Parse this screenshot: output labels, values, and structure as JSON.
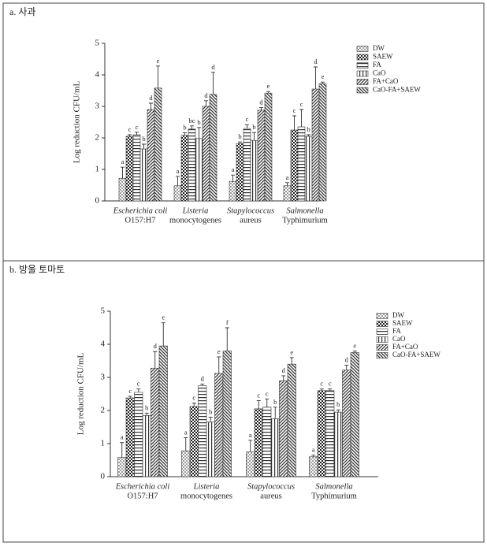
{
  "chart_data": [
    {
      "type": "bar",
      "title": "a. 사과",
      "y_label": "Log reduction CFU/mL",
      "categories": [
        [
          "Escherichia coli",
          "O157:H7"
        ],
        [
          "Listeria",
          "monocytogenes"
        ],
        [
          "Stapylococcus",
          "aureus"
        ],
        [
          "Salmonella",
          "Typhimurium"
        ]
      ],
      "ylim": [
        0,
        5
      ],
      "yticks": [
        0,
        1,
        2,
        3,
        4,
        5
      ],
      "series": [
        {
          "name": "DW",
          "color": "#555",
          "pattern": "dots",
          "values": [
            0.72,
            0.48,
            0.62,
            0.48
          ],
          "errors": [
            0.35,
            0.3,
            0.2,
            0.1
          ],
          "letters": [
            "a",
            "a",
            "a",
            "a"
          ]
        },
        {
          "name": "SAEW",
          "color": "#222",
          "pattern": "checker",
          "values": [
            2.05,
            2.08,
            1.82,
            2.25
          ],
          "errors": [
            0.05,
            0.08,
            0.05,
            0.45
          ],
          "letters": [
            "c",
            "b",
            "b",
            "c"
          ]
        },
        {
          "name": "FA",
          "color": "#333",
          "pattern": "hlines",
          "values": [
            2.1,
            2.28,
            2.3,
            2.35
          ],
          "errors": [
            0.08,
            0.1,
            0.12,
            0.55
          ],
          "letters": [
            "c",
            "bc",
            "c",
            "c"
          ]
        },
        {
          "name": "CaO",
          "color": "#333",
          "pattern": "vlines",
          "values": [
            1.65,
            1.98,
            1.92,
            2.05
          ],
          "errors": [
            0.15,
            0.35,
            0.25,
            0.05
          ],
          "letters": [
            "b",
            "b",
            "b",
            "b"
          ]
        },
        {
          "name": "FA+CaO",
          "color": "#333",
          "pattern": "diag",
          "values": [
            2.9,
            3.0,
            2.88,
            3.55
          ],
          "errors": [
            0.2,
            0.18,
            0.08,
            0.7
          ],
          "letters": [
            "d",
            "d",
            "d",
            "d"
          ]
        },
        {
          "name": "CaO-FA+SAEW",
          "color": "#333",
          "pattern": "diag2",
          "values": [
            3.58,
            3.38,
            3.42,
            3.72
          ],
          "errors": [
            0.7,
            0.7,
            0.05,
            0.05
          ],
          "letters": [
            "e",
            "d",
            "e",
            "e"
          ]
        }
      ]
    },
    {
      "type": "bar",
      "title": "b. 방울 토마토",
      "y_label": "Log reduction CFU/mL",
      "categories": [
        [
          "Escherichia coli",
          "O157:H7"
        ],
        [
          "Listeria",
          "monocytogenes"
        ],
        [
          "Stapylococcus",
          "aureus"
        ],
        [
          "Salmonella",
          "Typhimurium"
        ]
      ],
      "ylim": [
        0,
        5
      ],
      "yticks": [
        0,
        1,
        2,
        3,
        4,
        5
      ],
      "series": [
        {
          "name": "DW",
          "color": "#555",
          "pattern": "dots",
          "values": [
            0.58,
            0.78,
            0.75,
            0.6
          ],
          "errors": [
            0.45,
            0.4,
            0.35,
            0.05
          ],
          "letters": [
            "a",
            "a",
            "a",
            "a"
          ]
        },
        {
          "name": "SAEW",
          "color": "#222",
          "pattern": "checker",
          "values": [
            2.38,
            2.12,
            2.05,
            2.6
          ],
          "errors": [
            0.05,
            0.1,
            0.25,
            0.05
          ],
          "letters": [
            "c",
            "c",
            "c",
            "c"
          ]
        },
        {
          "name": "FA",
          "color": "#333",
          "pattern": "hlines",
          "values": [
            2.55,
            2.75,
            2.1,
            2.6
          ],
          "errors": [
            0.1,
            0.05,
            0.25,
            0.05
          ],
          "letters": [
            "c",
            "d",
            "c",
            "c"
          ]
        },
        {
          "name": "CaO",
          "color": "#333",
          "pattern": "vlines",
          "values": [
            1.85,
            1.65,
            1.75,
            1.95
          ],
          "errors": [
            0.07,
            0.15,
            0.35,
            0.07
          ],
          "letters": [
            "b",
            "b",
            "b",
            "b"
          ]
        },
        {
          "name": "FA+CaO",
          "color": "#333",
          "pattern": "diag",
          "values": [
            3.28,
            3.12,
            2.9,
            3.22
          ],
          "errors": [
            0.5,
            0.5,
            0.15,
            0.15
          ],
          "letters": [
            "d",
            "e",
            "d",
            "d"
          ]
        },
        {
          "name": "CaO-FA+SAEW",
          "color": "#333",
          "pattern": "diag2",
          "values": [
            3.95,
            3.8,
            3.4,
            3.75
          ],
          "errors": [
            0.7,
            0.7,
            0.2,
            0.05
          ],
          "letters": [
            "e",
            "f",
            "e",
            "e"
          ]
        }
      ]
    }
  ]
}
